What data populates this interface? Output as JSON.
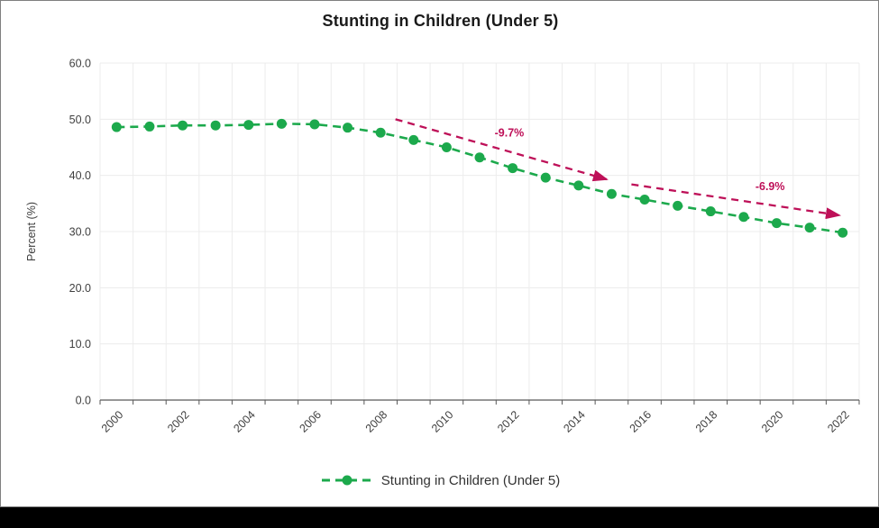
{
  "chart": {
    "title": "Stunting in Children (Under 5)",
    "ylabel": "Percent (%)",
    "legend_label": "Stunting in Children (Under 5)",
    "colors": {
      "series": "#1CA94C",
      "trend": "#BE1058",
      "grid": "#ECECEC",
      "axis": "#595959",
      "tick_text": "#404040",
      "title_text": "#1A1A1A"
    }
  },
  "chart_data": {
    "type": "line",
    "title": "Stunting in Children (Under 5)",
    "xlabel": "",
    "ylabel": "Percent (%)",
    "x": [
      2000,
      2001,
      2002,
      2003,
      2004,
      2005,
      2006,
      2007,
      2008,
      2009,
      2010,
      2011,
      2012,
      2013,
      2014,
      2015,
      2016,
      2017,
      2018,
      2019,
      2020,
      2021,
      2022
    ],
    "series": [
      {
        "name": "Stunting in Children (Under 5)",
        "values": [
          48.6,
          48.7,
          48.9,
          48.9,
          49.0,
          49.2,
          49.1,
          48.5,
          47.6,
          46.3,
          45.0,
          43.2,
          41.3,
          39.6,
          38.2,
          36.7,
          35.7,
          34.6,
          33.6,
          32.6,
          31.5,
          30.7,
          29.8
        ],
        "line_style": "dashed",
        "marker": "circle"
      }
    ],
    "ylim": [
      0,
      60
    ],
    "ytick_step": 10,
    "yticklabels": [
      "0.0",
      "10.0",
      "20.0",
      "30.0",
      "40.0",
      "50.0",
      "60.0"
    ],
    "xticklabels": [
      "2000",
      "2002",
      "2004",
      "2006",
      "2008",
      "2010",
      "2012",
      "2014",
      "2016",
      "2018",
      "2020",
      "2022"
    ],
    "grid": "on",
    "legend_position": "bottom",
    "annotations": [
      {
        "label": "-9.7%",
        "from": {
          "year": 2008.45,
          "value": 50.0
        },
        "to": {
          "year": 2014.85,
          "value": 39.3
        },
        "label_at": {
          "year": 2011.9,
          "value": 47.6
        }
      },
      {
        "label": "-6.9%",
        "from": {
          "year": 2015.6,
          "value": 38.4
        },
        "to": {
          "year": 2021.9,
          "value": 32.9
        },
        "label_at": {
          "year": 2019.8,
          "value": 38.0
        }
      }
    ]
  }
}
